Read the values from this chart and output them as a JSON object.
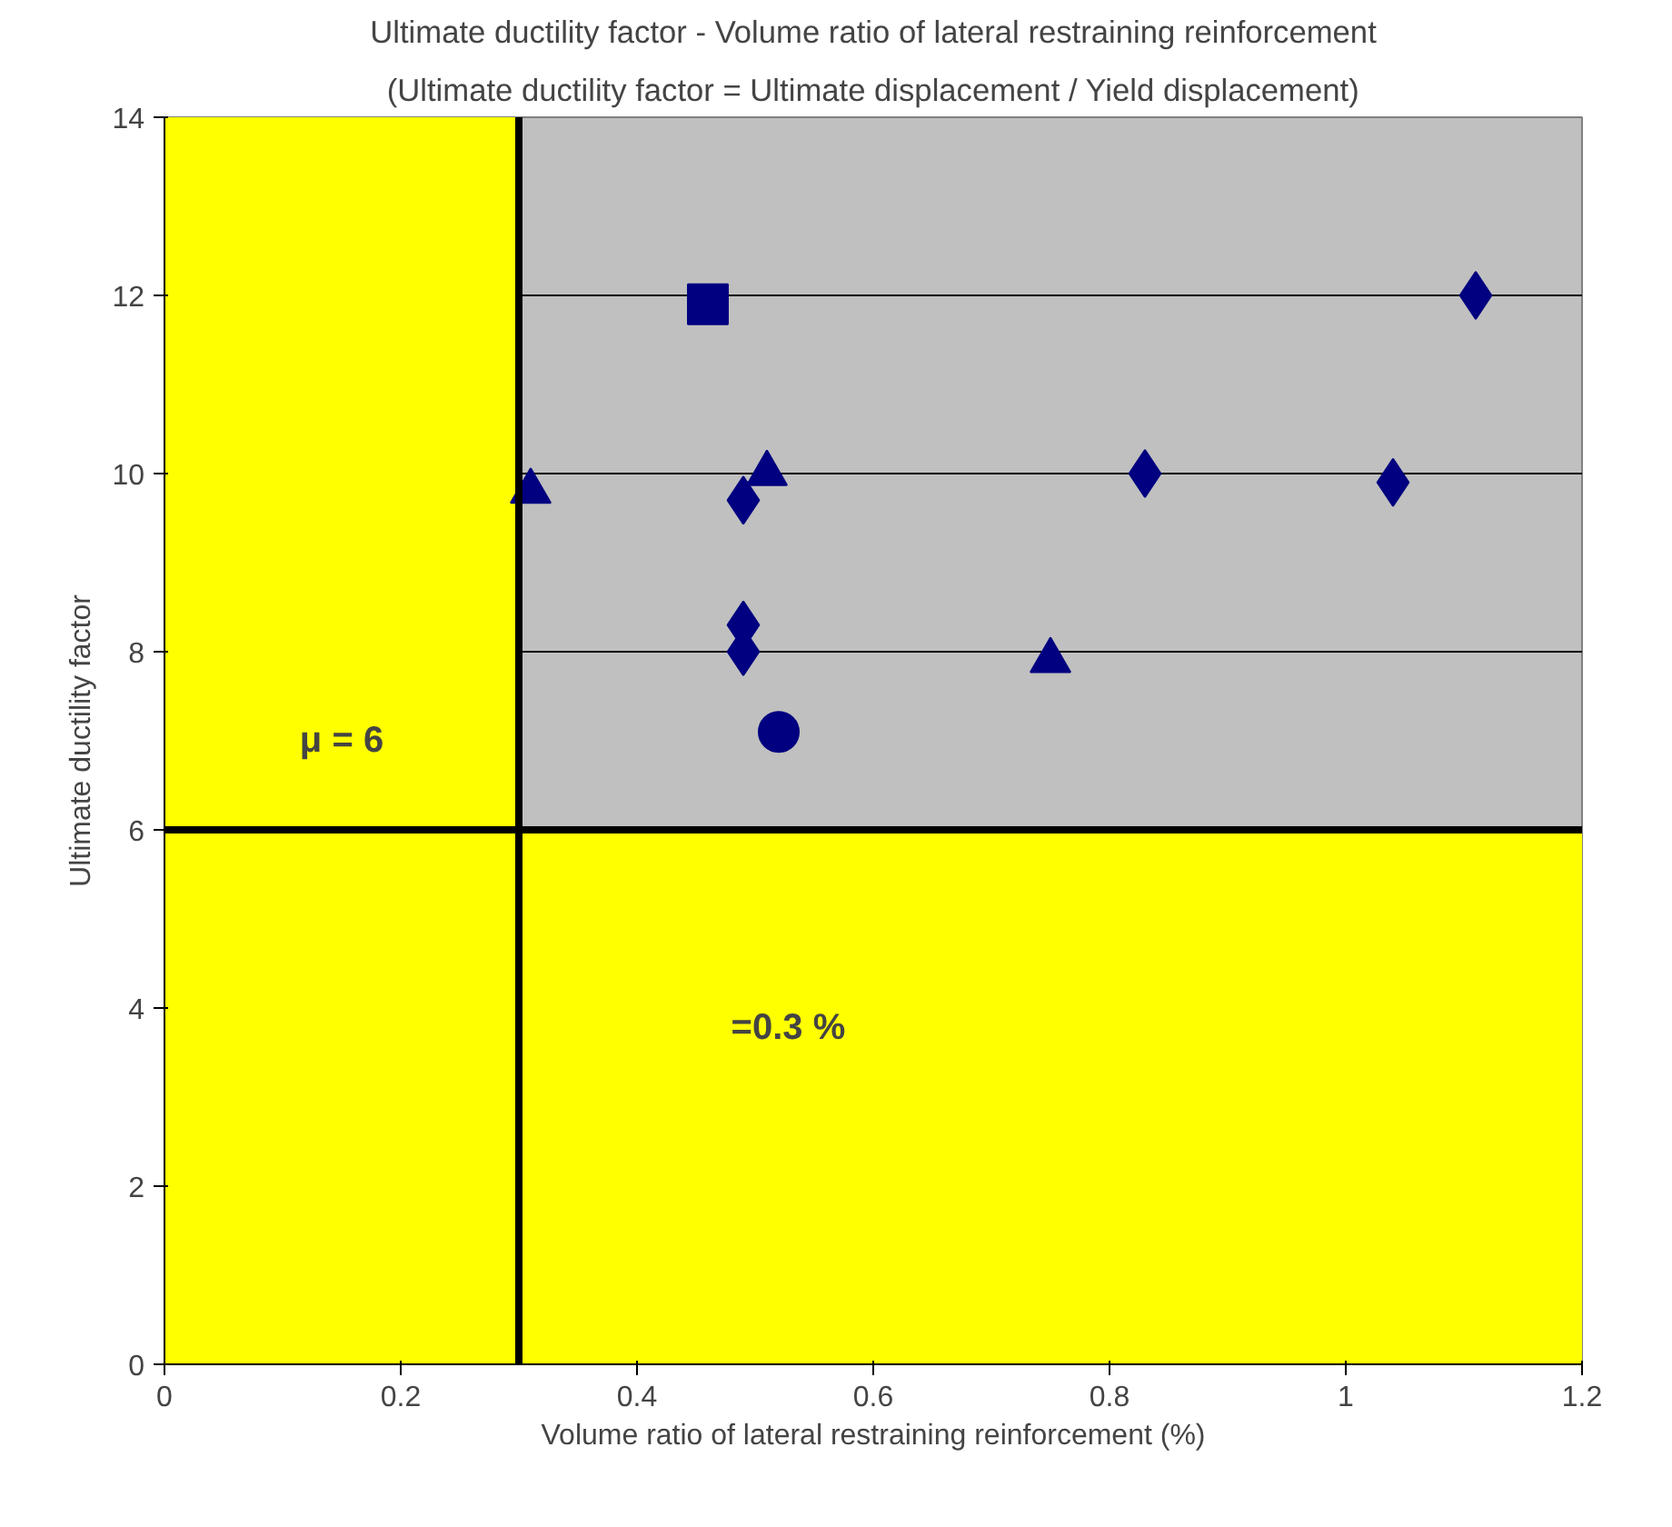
{
  "chart_data": {
    "type": "scatter",
    "title": "Ultimate ductility factor - Volume ratio of lateral restraining reinforcement",
    "subtitle": "(Ultimate ductility factor = Ultimate displacement / Yield displacement)",
    "xlabel": "Volume ratio of lateral restraining reinforcement (%)",
    "ylabel": "Ultimate ductility factor",
    "xlim": [
      0,
      1.2
    ],
    "ylim": [
      0,
      14
    ],
    "xticks": [
      0,
      0.2,
      0.4,
      0.6,
      0.8,
      1,
      1.2
    ],
    "yticks": [
      0,
      2,
      4,
      6,
      8,
      10,
      12,
      14
    ],
    "grid": "y",
    "bands": [
      {
        "axis": "x",
        "from": 0,
        "to": 0.3,
        "color": "#ffff00"
      },
      {
        "axis": "y",
        "from": 0,
        "to": 6,
        "color": "#ffff00"
      }
    ],
    "ref_lines": [
      {
        "axis": "x",
        "value": 0.3
      },
      {
        "axis": "y",
        "value": 6
      }
    ],
    "annotations": [
      "μ = 6",
      "=0.3 %"
    ],
    "series": [
      {
        "color": "#000080",
        "marker": "diamond",
        "x": [
          0.49,
          0.49,
          0.49,
          0.83,
          1.04,
          1.11
        ],
        "values": [
          9.7,
          8.3,
          8.0,
          10.0,
          9.9,
          12.0
        ]
      },
      {
        "color": "#000080",
        "marker": "triangle",
        "x": [
          0.31,
          0.51,
          0.75
        ],
        "values": [
          9.8,
          10.0,
          7.9
        ]
      },
      {
        "color": "#000080",
        "marker": "square",
        "x": [
          0.46
        ],
        "values": [
          11.9
        ]
      },
      {
        "color": "#000080",
        "marker": "circle",
        "x": [
          0.52
        ],
        "values": [
          7.1
        ]
      }
    ]
  }
}
